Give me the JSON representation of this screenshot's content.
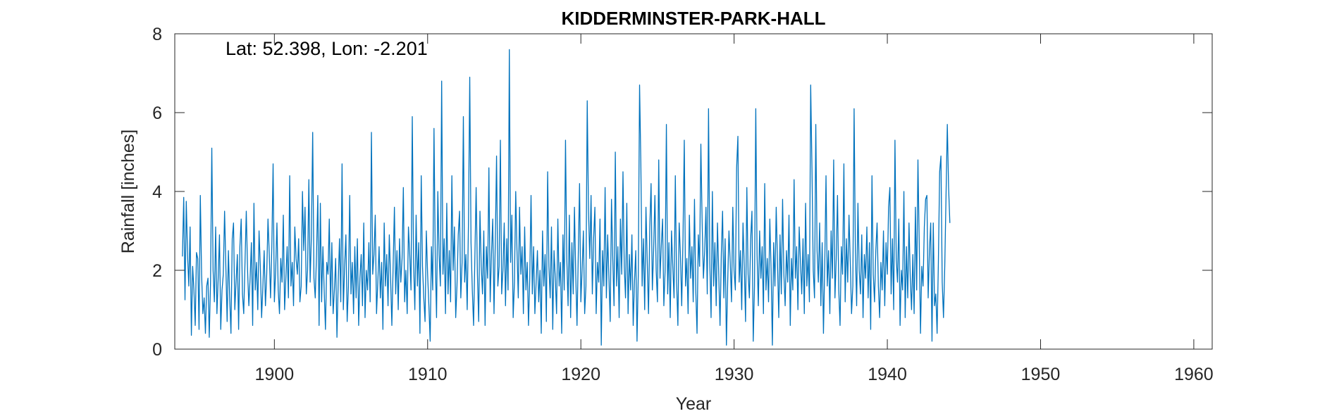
{
  "chart_data": {
    "type": "line",
    "title": "KIDDERMINSTER-PARK-HALL",
    "xlabel": "Year",
    "ylabel": "Rainfall [inches]",
    "annotation": "Lat: 52.398, Lon: -2.201",
    "xlim": [
      1893.5,
      1961.2
    ],
    "ylim": [
      0,
      8
    ],
    "xticks": [
      "1900",
      "1910",
      "1920",
      "1930",
      "1940",
      "1950",
      "1960"
    ],
    "yticks": [
      "0",
      "2",
      "4",
      "6",
      "8"
    ],
    "grid": false,
    "series_color": "#0072BD",
    "series": [
      {
        "x_start": 1894.0,
        "x_step": 0.08333,
        "values": [
          2.35,
          3.85,
          1.25,
          3.75,
          2.4,
          1.6,
          3.1,
          0.35,
          2.1,
          1.5,
          0.6,
          2.45,
          2.3,
          0.5,
          3.9,
          1.9,
          0.9,
          1.3,
          0.4,
          1.6,
          1.8,
          0.3,
          1.7,
          5.1,
          2.0,
          1.2,
          3.1,
          0.9,
          1.8,
          2.9,
          0.5,
          1.5,
          1.9,
          3.5,
          2.1,
          0.7,
          2.5,
          1.3,
          0.4,
          2.8,
          3.2,
          1.0,
          1.7,
          2.4,
          0.5,
          2.6,
          3.3,
          1.4,
          0.9,
          2.2,
          3.5,
          2.0,
          1.1,
          1.8,
          2.7,
          0.6,
          3.7,
          1.5,
          2.2,
          1.0,
          3.0,
          2.1,
          0.8,
          1.6,
          2.5,
          1.1,
          1.9,
          3.3,
          2.4,
          1.3,
          2.6,
          4.7,
          1.2,
          2.0,
          3.2,
          1.5,
          0.9,
          2.3,
          1.7,
          3.4,
          1.0,
          1.8,
          2.6,
          1.3,
          4.4,
          1.6,
          2.2,
          1.1,
          3.1,
          2.3,
          1.9,
          2.8,
          1.2,
          1.6,
          4.0,
          2.5,
          3.6,
          1.4,
          2.0,
          4.3,
          1.7,
          2.9,
          5.5,
          1.8,
          1.3,
          2.4,
          3.9,
          0.6,
          3.7,
          1.2,
          2.6,
          1.5,
          0.5,
          2.2,
          1.9,
          3.3,
          1.1,
          2.7,
          0.9,
          1.5,
          2.3,
          0.3,
          1.7,
          2.8,
          1.2,
          4.7,
          1.0,
          2.1,
          2.9,
          0.7,
          1.6,
          3.9,
          1.4,
          2.2,
          0.9,
          2.6,
          1.3,
          2.8,
          0.6,
          1.8,
          2.4,
          1.1,
          3.2,
          0.8,
          2.0,
          1.5,
          2.7,
          1.2,
          5.5,
          1.9,
          2.4,
          3.4,
          0.9,
          1.7,
          2.6,
          1.3,
          2.2,
          0.5,
          3.2,
          1.6,
          2.4,
          1.1,
          2.9,
          1.8,
          0.6,
          2.1,
          3.6,
          1.4,
          2.5,
          1.0,
          2.8,
          1.7,
          2.3,
          4.1,
          1.2,
          2.0,
          0.9,
          3.1,
          2.4,
          1.5,
          5.9,
          2.2,
          1.0,
          3.4,
          1.6,
          2.7,
          0.4,
          4.4,
          2.1,
          1.3,
          0.7,
          3.0,
          1.9,
          1.1,
          0.2,
          2.6,
          1.5,
          5.6,
          2.3,
          0.8,
          4.0,
          2.4,
          1.6,
          6.8,
          1.9,
          2.8,
          0.9,
          3.7,
          1.4,
          2.5,
          1.2,
          4.4,
          2.0,
          3.1,
          0.8,
          1.6,
          2.9,
          3.5,
          1.3,
          2.2,
          5.9,
          1.7,
          2.4,
          1.0,
          3.2,
          6.9,
          2.7,
          1.5,
          0.6,
          2.3,
          4.1,
          1.9,
          0.7,
          3.5,
          2.1,
          1.4,
          3.0,
          0.6,
          2.6,
          1.8,
          4.6,
          1.2,
          2.4,
          3.3,
          0.9,
          2.7,
          4.9,
          1.6,
          2.1,
          5.3,
          1.4,
          2.0,
          3.2,
          1.1,
          2.8,
          1.5,
          7.6,
          2.2,
          3.4,
          0.8,
          1.7,
          4.0,
          2.5,
          1.3,
          3.6,
          1.9,
          2.6,
          0.9,
          3.1,
          1.5,
          2.2,
          0.6,
          1.8,
          3.9,
          1.4,
          2.6,
          0.9,
          1.7,
          2.5,
          1.2,
          2.0,
          0.4,
          3.0,
          1.6,
          2.4,
          0.7,
          4.5,
          2.1,
          1.3,
          3.1,
          0.5,
          2.5,
          1.8,
          0.9,
          3.3,
          1.6,
          2.2,
          0.4,
          2.9,
          1.5,
          5.3,
          2.3,
          1.1,
          3.4,
          0.8,
          2.7,
          1.4,
          3.6,
          1.9,
          0.6,
          2.4,
          4.2,
          1.2,
          2.0,
          3.0,
          0.9,
          1.6,
          6.3,
          3.5,
          2.3,
          3.9,
          1.4,
          2.8,
          3.6,
          0.9,
          2.2,
          1.7,
          3.3,
          0.1,
          2.5,
          1.6,
          4.1,
          1.3,
          2.9,
          1.8,
          0.7,
          3.8,
          2.3,
          1.1,
          5.0,
          1.6,
          2.6,
          0.8,
          3.3,
          1.9,
          4.5,
          2.1,
          1.3,
          3.7,
          0.9,
          2.4,
          1.5,
          2.9,
          0.6,
          1.7,
          2.5,
          0.2,
          1.9,
          6.7,
          4.7,
          1.6,
          2.8,
          1.0,
          3.6,
          2.2,
          0.9,
          3.1,
          4.2,
          1.5,
          2.5,
          3.9,
          2.0,
          1.2,
          4.8,
          1.8,
          2.6,
          3.3,
          1.1,
          2.0,
          5.7,
          1.4,
          2.7,
          0.8,
          3.0,
          2.1,
          1.3,
          4.4,
          1.7,
          0.6,
          3.2,
          2.4,
          1.1,
          2.8,
          5.3,
          1.6,
          2.3,
          0.9,
          3.4,
          1.8,
          2.6,
          1.2,
          3.8,
          1.5,
          0.4,
          2.9,
          2.1,
          5.2,
          3.2,
          1.8,
          2.5,
          3.6,
          1.4,
          6.1,
          2.2,
          0.8,
          4.0,
          1.6,
          2.7,
          1.1,
          3.2,
          1.9,
          0.6,
          2.4,
          3.5,
          1.3,
          2.8,
          0.1,
          1.7,
          3.0,
          2.2,
          1.2,
          3.6,
          2.0,
          1.5,
          4.6,
          5.4,
          1.7,
          2.5,
          1.0,
          3.2,
          2.1,
          0.7,
          4.1,
          1.9,
          1.3,
          2.8,
          3.5,
          0.2,
          1.6,
          6.1,
          2.4,
          1.1,
          3.0,
          1.8,
          2.6,
          0.9,
          4.2,
          1.5,
          2.3,
          1.2,
          3.3,
          2.0,
          0.1,
          2.7,
          1.6,
          3.6,
          2.2,
          0.8,
          2.9,
          1.4,
          3.8,
          1.9,
          1.1,
          2.5,
          1.7,
          3.4,
          0.6,
          2.3,
          1.5,
          4.3,
          1.8,
          2.6,
          1.0,
          3.1,
          2.2,
          1.4,
          2.8,
          0.9,
          3.7,
          1.6,
          2.4,
          1.2,
          6.7,
          4.6,
          2.0,
          1.3,
          5.7,
          2.5,
          1.7,
          3.2,
          1.1,
          2.7,
          0.4,
          2.1,
          4.4,
          1.6,
          2.5,
          0.9,
          3.0,
          1.8,
          4.8,
          1.3,
          2.3,
          3.9,
          1.5,
          0.6,
          2.6,
          1.9,
          4.7,
          1.2,
          2.8,
          1.7,
          3.4,
          2.2,
          0.9,
          1.6,
          6.1,
          2.5,
          1.1,
          3.7,
          2.0,
          1.4,
          2.9,
          0.8,
          2.4,
          1.8,
          3.1,
          1.3,
          2.7,
          0.5,
          4.4,
          1.9,
          1.2,
          2.5,
          3.2,
          1.6,
          0.8,
          2.2,
          1.5,
          3.0,
          1.1,
          2.7,
          1.9,
          3.6,
          4.1,
          1.4,
          2.8,
          1.0,
          5.3,
          2.3,
          1.7,
          3.3,
          0.6,
          2.0,
          1.5,
          4.0,
          0.8,
          2.6,
          1.3,
          3.2,
          1.8,
          1.0,
          2.4,
          0.9,
          3.6,
          1.5,
          4.8,
          2.7,
          0.4,
          2.1,
          1.6,
          3.1,
          3.8,
          3.9,
          1.3,
          2.5,
          3.2,
          0.2,
          3.2,
          1.1,
          1.4,
          0.4,
          2.2,
          4.5,
          4.9,
          1.7,
          0.8,
          2.1,
          3.9,
          5.7,
          4.1,
          3.2
        ]
      }
    ]
  }
}
